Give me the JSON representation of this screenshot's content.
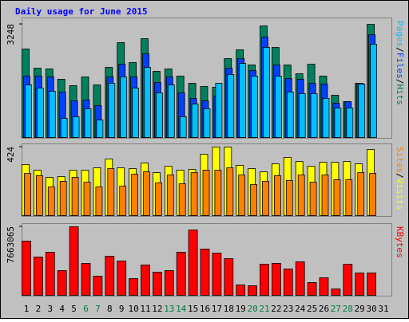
{
  "chart_data": [
    {
      "type": "bar",
      "title": "Daily usage for June 2015",
      "ylim": [
        0,
        3248
      ],
      "yticks": [
        3248
      ],
      "legend_separator": "/",
      "series": [
        {
          "name": "Hits",
          "color": "#00805c",
          "values": [
            2539,
            1990,
            1967,
            1670,
            1487,
            1738,
            1509,
            2013,
            2722,
            2150,
            2836,
            1898,
            1967,
            1761,
            1555,
            1464,
            1441,
            2264,
            2516,
            2081,
            3202,
            2584,
            2081,
            1830,
            2104,
            1761,
            1212,
            1029,
            1555,
            3248,
            null
          ]
        },
        {
          "name": "Files",
          "color": "#0040ff",
          "values": [
            1761,
            1761,
            1738,
            1304,
            1052,
            1075,
            915,
            1738,
            2104,
            1738,
            2401,
            1578,
            1738,
            1281,
            1121,
            1052,
            1189,
            1990,
            2264,
            1921,
            2882,
            2081,
            1692,
            1670,
            1555,
            1532,
            983,
            1029,
            1555,
            2950,
            null
          ]
        },
        {
          "name": "Pages",
          "color": "#00c0ff",
          "values": [
            1509,
            1418,
            1326,
            549,
            595,
            823,
            503,
            1555,
            1738,
            1418,
            2013,
            1281,
            1509,
            595,
            961,
            823,
            1555,
            1807,
            2127,
            1761,
            2584,
            1761,
            1304,
            1258,
            1258,
            1121,
            846,
            846,
            1532,
            2676,
            null
          ]
        }
      ]
    },
    {
      "type": "bar",
      "ylim": [
        0,
        424
      ],
      "yticks": [
        424
      ],
      "legend_separator": "/",
      "series": [
        {
          "name": "Visits",
          "color": "#ffff00",
          "values": [
            316,
            281,
            237,
            242,
            281,
            281,
            296,
            350,
            296,
            291,
            325,
            266,
            306,
            281,
            286,
            380,
            424,
            424,
            311,
            291,
            271,
            320,
            360,
            335,
            306,
            330,
            330,
            335,
            320,
            409,
            null
          ]
        },
        {
          "name": "Sites",
          "color": "#ff8000",
          "values": [
            261,
            247,
            177,
            212,
            237,
            207,
            177,
            291,
            182,
            256,
            271,
            202,
            251,
            197,
            266,
            281,
            281,
            296,
            251,
            192,
            212,
            247,
            217,
            251,
            207,
            251,
            222,
            222,
            266,
            261,
            null
          ]
        }
      ]
    },
    {
      "type": "bar",
      "ylim": [
        0,
        7663065
      ],
      "yticks": [
        7663065
      ],
      "series": [
        {
          "name": "KBytes",
          "color": "#ff0000",
          "values": [
            6059140,
            4277040,
            4811670,
            2762255,
            7663065,
            3564200,
            2138520,
            4366145,
            3831515,
            1871205,
            3385990,
            2584045,
            2762255,
            4811670,
            7306610,
            5168090,
            4722565,
            4098830,
            1158365,
            1069260,
            3475095,
            3564200,
            2940465,
            3742410,
            1425680,
            1960310,
            712840,
            3475095,
            2494940,
            2494940,
            null
          ]
        }
      ],
      "categories": [
        "1",
        "2",
        "3",
        "4",
        "5",
        "6",
        "7",
        "8",
        "9",
        "10",
        "11",
        "12",
        "13",
        "14",
        "15",
        "16",
        "17",
        "18",
        "19",
        "20",
        "21",
        "22",
        "23",
        "24",
        "25",
        "26",
        "27",
        "28",
        "29",
        "30",
        "31"
      ],
      "weekend_indices": [
        5,
        6,
        12,
        13,
        19,
        20,
        26,
        27
      ],
      "weekend_color": "#008040"
    }
  ]
}
